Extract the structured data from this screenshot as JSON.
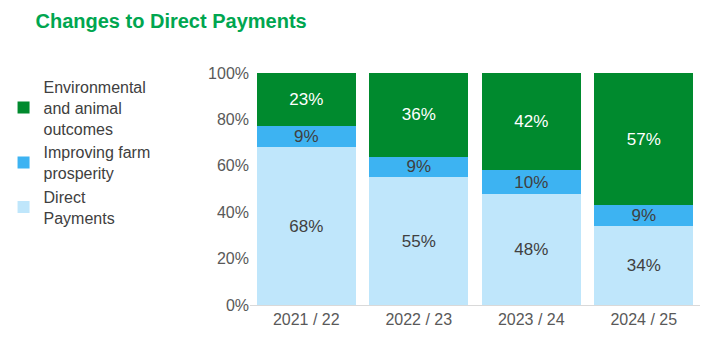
{
  "chart_data": {
    "type": "bar",
    "title": "Changes to Direct Payments",
    "categories": [
      "2021 / 22",
      "2022 / 23",
      "2023 / 24",
      "2024 / 25"
    ],
    "series": [
      {
        "name": "Direct Payments",
        "color": "#bfe6fb",
        "values": [
          68,
          55,
          48,
          34
        ],
        "value_labels": [
          "68%",
          "55%",
          "48%",
          "34%"
        ]
      },
      {
        "name": "Improving farm prosperity",
        "color": "#3db3f2",
        "values": [
          9,
          9,
          10,
          9
        ],
        "value_labels": [
          "9%",
          "9%",
          "10%",
          "9%"
        ]
      },
      {
        "name": "Environmental and animal outcomes",
        "color": "#008a2e",
        "values": [
          23,
          36,
          42,
          57
        ],
        "value_labels": [
          "23%",
          "36%",
          "42%",
          "57%"
        ]
      }
    ],
    "ylim": [
      0,
      100
    ],
    "yticks": [
      {
        "value": 0,
        "label": "0%"
      },
      {
        "value": 20,
        "label": "20%"
      },
      {
        "value": 40,
        "label": "40%"
      },
      {
        "value": 60,
        "label": "60%"
      },
      {
        "value": 80,
        "label": "80%"
      },
      {
        "value": 100,
        "label": "100%"
      }
    ],
    "stacked": true,
    "data_labels": true,
    "legend": "left",
    "grid": false
  }
}
